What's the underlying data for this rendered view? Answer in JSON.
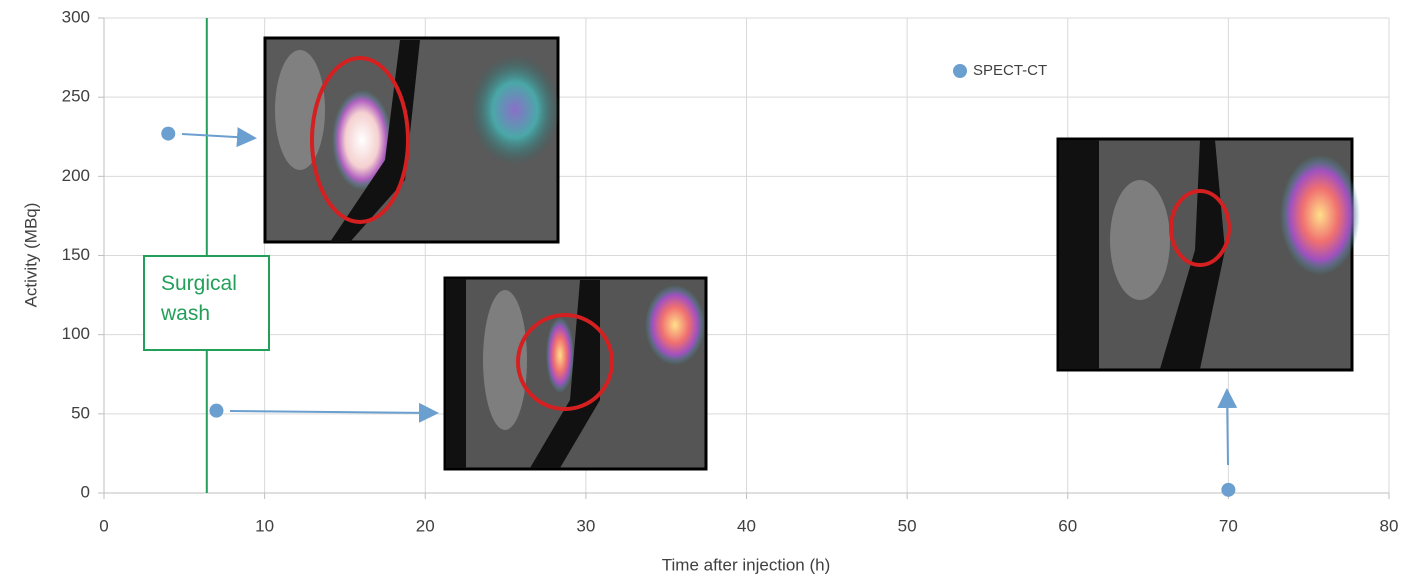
{
  "chart_data": {
    "type": "scatter",
    "xlabel": "Time after injection (h)",
    "ylabel": "Activity (MBq)",
    "series": [
      {
        "name": "SPECT-CT",
        "color": "#6a9fd0",
        "x": [
          4,
          7,
          70
        ],
        "values": [
          227,
          52,
          2
        ]
      }
    ],
    "xlim": [
      0,
      80
    ],
    "xticks": [
      0,
      10,
      20,
      30,
      40,
      50,
      60,
      70,
      80
    ],
    "ylim": [
      0,
      300
    ],
    "yticks": [
      0,
      50,
      100,
      150,
      200,
      250,
      300
    ],
    "grid": true,
    "legend": "top-right",
    "annotation": {
      "x": 6.4,
      "label": "Surgical wash",
      "color": "#22a05a"
    }
  }
}
